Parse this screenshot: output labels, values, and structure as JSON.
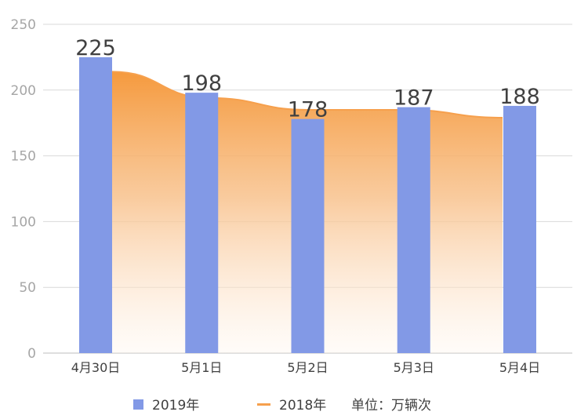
{
  "chart_data": {
    "type": "bar",
    "categories": [
      "4月30日",
      "5月1日",
      "5月2日",
      "5月3日",
      "5月4日"
    ],
    "series": [
      {
        "name": "2019年",
        "type": "bar",
        "values": [
          225,
          198,
          178,
          187,
          188
        ],
        "color": "#8299e6",
        "data_labels": [
          "225",
          "198",
          "178",
          "187",
          "188"
        ]
      },
      {
        "name": "2018年",
        "type": "area",
        "values": [
          214,
          194,
          185,
          185,
          179
        ],
        "color": "#f6a04d"
      }
    ],
    "ylim": [
      0,
      250
    ],
    "yticks": [
      0,
      50,
      100,
      150,
      200,
      250
    ],
    "grid": true,
    "legend_position": "bottom",
    "unit_note": "单位：万辆次"
  }
}
